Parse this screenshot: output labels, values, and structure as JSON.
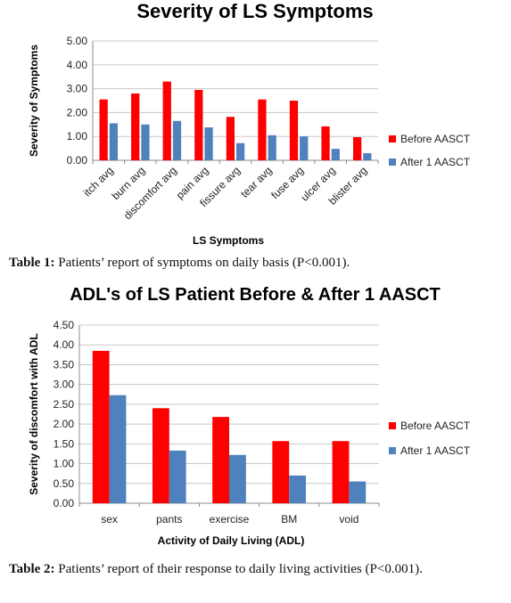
{
  "chart_data": [
    {
      "type": "bar",
      "title": "Severity of LS Symptoms",
      "xlabel": "LS Symptoms",
      "ylabel": "Severity of Symptoms",
      "ylim": [
        0,
        5
      ],
      "yticks": [
        "0.00",
        "1.00",
        "2.00",
        "3.00",
        "4.00",
        "5.00"
      ],
      "categories": [
        "itch avg",
        "burn avg",
        "discomfort avg",
        "pain avg",
        "fissure avg",
        "tear avg",
        "fuse avg",
        "ulcer avg",
        "blister avg"
      ],
      "series": [
        {
          "name": "Before AASCT",
          "color": "#ff0000",
          "values": [
            2.55,
            2.8,
            3.3,
            2.95,
            1.82,
            2.55,
            2.5,
            1.42,
            0.97
          ]
        },
        {
          "name": "After 1 AASCT",
          "color": "#4f81bd",
          "values": [
            1.55,
            1.5,
            1.65,
            1.38,
            0.72,
            1.05,
            1.0,
            0.48,
            0.3
          ]
        }
      ],
      "grid": true,
      "legend": "right"
    },
    {
      "type": "bar",
      "title": "ADL's of LS Patient Before & After 1 AASCT",
      "xlabel": "Activity of Daily Living (ADL)",
      "ylabel": "Severity of discomfort with ADL",
      "ylim": [
        0,
        4.5
      ],
      "yticks": [
        "0.00",
        "0.50",
        "1.00",
        "1.50",
        "2.00",
        "2.50",
        "3.00",
        "3.50",
        "4.00",
        "4.50"
      ],
      "categories": [
        "sex",
        "pants",
        "exercise",
        "BM",
        "void"
      ],
      "series": [
        {
          "name": "Before AASCT",
          "color": "#ff0000",
          "values": [
            3.85,
            2.4,
            2.18,
            1.57,
            1.57
          ]
        },
        {
          "name": "After 1 AASCT",
          "color": "#4f81bd",
          "values": [
            2.73,
            1.33,
            1.22,
            0.7,
            0.55
          ]
        }
      ],
      "grid": true,
      "legend": "right"
    }
  ],
  "captions": {
    "table1": {
      "label": "Table 1:",
      "text": " Patients’ report of symptoms on daily basis (P<0.001)."
    },
    "table2": {
      "label": "Table 2:",
      "text": " Patients’ report of their response to daily living activities (P<0.001)."
    }
  }
}
